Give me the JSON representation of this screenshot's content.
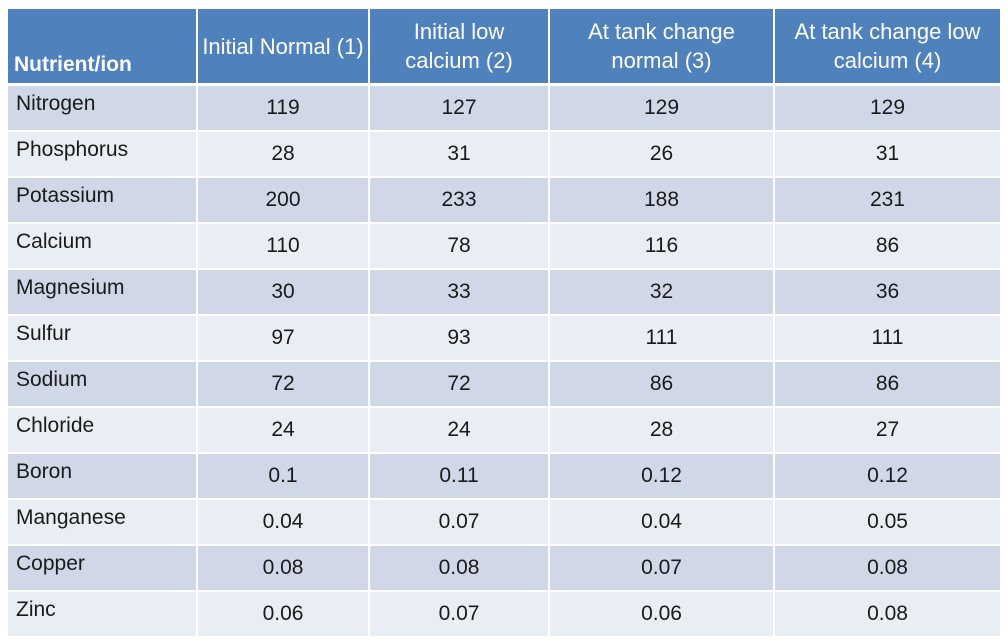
{
  "table": {
    "headers": [
      "Nutrient/ion",
      "Initial Normal (1)",
      "Initial low calcium (2)",
      "At tank change normal  (3)",
      "At tank change low calcium (4)"
    ],
    "rows": [
      [
        "Nitrogen",
        "119",
        "127",
        "129",
        "129"
      ],
      [
        "Phosphorus",
        "28",
        "31",
        "26",
        "31"
      ],
      [
        "Potassium",
        "200",
        "233",
        "188",
        "231"
      ],
      [
        "Calcium",
        "110",
        "78",
        "116",
        "86"
      ],
      [
        "Magnesium",
        "30",
        "33",
        "32",
        "36"
      ],
      [
        "Sulfur",
        "97",
        "93",
        "111",
        "111"
      ],
      [
        "Sodium",
        "72",
        "72",
        "86",
        "86"
      ],
      [
        "Chloride",
        "24",
        "24",
        "28",
        "27"
      ],
      [
        "Boron",
        "0.1",
        "0.11",
        "0.12",
        "0.12"
      ],
      [
        "Manganese",
        "0.04",
        "0.07",
        "0.04",
        "0.05"
      ],
      [
        "Copper",
        "0.08",
        "0.08",
        "0.07",
        "0.08"
      ],
      [
        "Zinc",
        "0.06",
        "0.07",
        "0.06",
        "0.08"
      ]
    ]
  },
  "colors": {
    "header_bg": "#4f81bd",
    "row_band_dark": "#d0d8e8",
    "row_band_light": "#e9edf4"
  }
}
